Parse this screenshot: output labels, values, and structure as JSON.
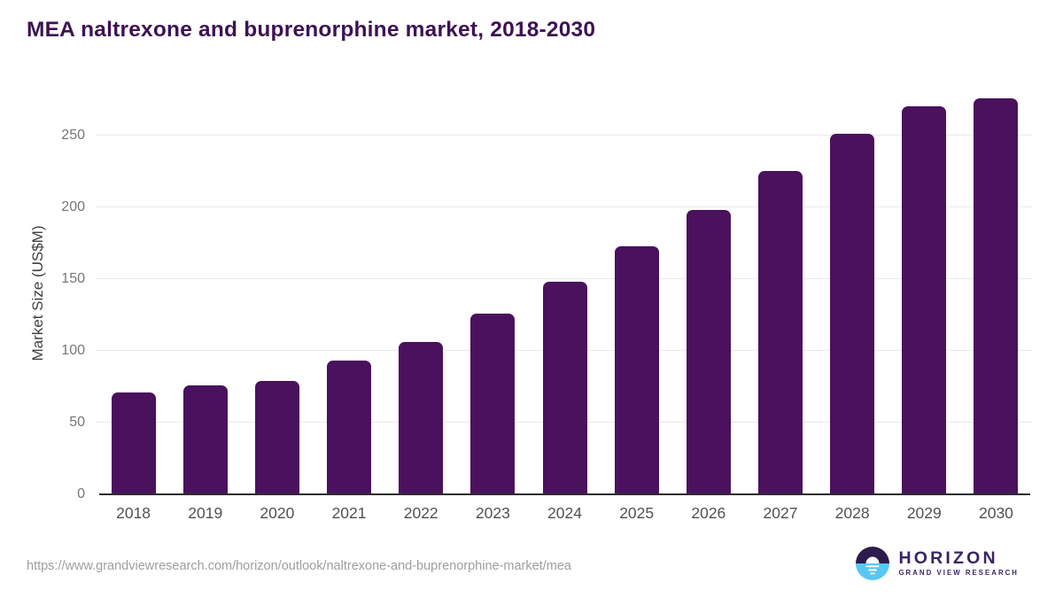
{
  "header": {
    "title": "MEA naltrexone and buprenorphine market, 2018-2030"
  },
  "chart_data": {
    "type": "bar",
    "title": "MEA naltrexone and buprenorphine market, 2018-2030",
    "categories": [
      "2018",
      "2019",
      "2020",
      "2021",
      "2022",
      "2023",
      "2024",
      "2025",
      "2026",
      "2027",
      "2028",
      "2029",
      "2030"
    ],
    "values": [
      71,
      76,
      79,
      93,
      106,
      126,
      148,
      173,
      198,
      225,
      251,
      270,
      276
    ],
    "xlabel": "",
    "ylabel": "Market Size (US$M)",
    "ylim": [
      0,
      280
    ],
    "yticks": [
      0,
      50,
      100,
      150,
      200,
      250
    ],
    "grid": "horizontal",
    "legend": "none",
    "bar_color": "#4a115c"
  },
  "colors": {
    "title_text": "#3d1254",
    "bar": "#4a115c",
    "axis_line": "#2d2d2d",
    "gridline": "#e9e9e9",
    "ytick_label": "#757575",
    "xtick_label": "#515151",
    "url_text": "#9e9e9e",
    "logo_dark": "#2e1b4d",
    "logo_blue": "#57c7f4",
    "logo_text": "#392463"
  },
  "footer": {
    "source_url": "https://www.grandviewresearch.com/horizon/outlook/naltrexone-and-buprenorphine-market/mea",
    "logo_name": "HORIZON",
    "logo_subtitle": "GRAND VIEW RESEARCH"
  }
}
